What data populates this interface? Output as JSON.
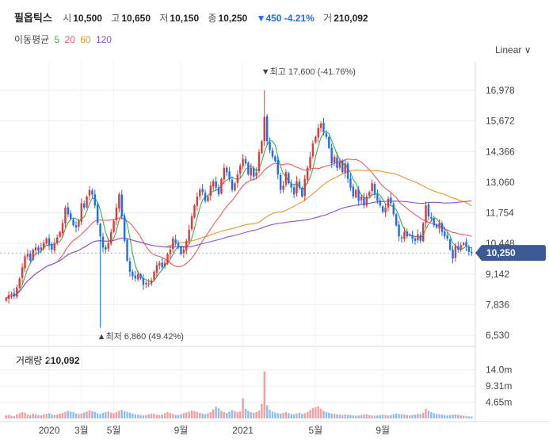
{
  "header": {
    "name": "필옵틱스",
    "open_label": "시",
    "open": "10,500",
    "high_label": "고",
    "high": "10,650",
    "low_label": "저",
    "low": "10,150",
    "close_label": "종",
    "close": "10,250",
    "change": "▼450 -4.21%",
    "volume_label": "거",
    "volume": "210,092"
  },
  "ma_legend": {
    "label": "이동평균",
    "items": [
      {
        "period": "5",
        "color": "#3fae49"
      },
      {
        "period": "20",
        "color": "#ef5a5a"
      },
      {
        "period": "60",
        "color": "#f0932b"
      },
      {
        "period": "120",
        "color": "#8b4fe0"
      }
    ]
  },
  "scale_selector": "Linear ∨",
  "colors": {
    "up": "#e03a3a",
    "down": "#1e6ef4",
    "vol_up": "#f0a0a0",
    "vol_down": "#8ec0ee",
    "badge": "#3d5a96"
  },
  "chart_data": {
    "type": "candlestick",
    "price_axis": {
      "ticks": [
        "16,978",
        "15,672",
        "14,366",
        "13,060",
        "11,754",
        "10,448",
        "9,142",
        "7,836",
        "6,530"
      ],
      "ylim": [
        6530,
        17600
      ]
    },
    "x_ticks": [
      "2020",
      "3월",
      "5월",
      "9월",
      "2021",
      "5월",
      "9월"
    ],
    "current_price": 10250,
    "current_price_label": "10,250",
    "max_annotation": "▼최고 17,600 (-41.76%)",
    "min_annotation": "▲최저 6,860 (49.42%)",
    "volume_title": "거래량",
    "volume_value": "210,092",
    "volume_axis": {
      "ticks": [
        "14.0m",
        "9.31m",
        "4.65m"
      ]
    },
    "series": {
      "close": [
        8200,
        8350,
        8400,
        8300,
        8700,
        9100,
        9600,
        10100,
        10200,
        9900,
        10400,
        10500,
        10350,
        10500,
        10700,
        10900,
        10600,
        10400,
        10700,
        10950,
        11200,
        11600,
        12300,
        12000,
        11800,
        11500,
        11400,
        11700,
        12500,
        12300,
        12800,
        13100,
        12900,
        12400,
        11600,
        11000,
        10500,
        10400,
        10700,
        11200,
        11700,
        12300,
        12900,
        11900,
        10800,
        9900,
        9400,
        9200,
        9100,
        9300,
        9100,
        8800,
        8900,
        8850,
        9000,
        9400,
        9700,
        9800,
        9600,
        9800,
        10200,
        10400,
        10900,
        10700,
        10500,
        10200,
        10400,
        10800,
        11300,
        11900,
        12400,
        12800,
        13100,
        13000,
        12600,
        12800,
        13300,
        13500,
        13200,
        12900,
        13600,
        14100,
        13900,
        13600,
        13100,
        13400,
        13800,
        14200,
        14500,
        14300,
        13800,
        14100,
        13700,
        13900,
        14800,
        15300,
        16400,
        15300,
        14900,
        14600,
        14400,
        13800,
        13100,
        13300,
        13900,
        13400,
        13200,
        12900,
        13500,
        13200,
        12800,
        13600,
        14100,
        14600,
        15200,
        15500,
        15900,
        16100,
        15700,
        15500,
        15000,
        14300,
        14600,
        14100,
        14400,
        13900,
        14300,
        13600,
        13200,
        12800,
        13100,
        12600,
        12800,
        12400,
        12800,
        13000,
        13400,
        12900,
        12600,
        12400,
        12100,
        12300,
        12700,
        12500,
        12000,
        11500,
        11000,
        10900,
        11200,
        11000,
        11100,
        10900,
        10800,
        11100,
        10800,
        11600,
        12400,
        11900,
        11800,
        11500,
        11400,
        11600,
        11200,
        11000,
        10900,
        10400,
        10000,
        10600,
        10400,
        10600,
        10700,
        10550,
        10300,
        10250
      ],
      "volume_m": [
        0.9,
        1.0,
        0.8,
        0.7,
        1.2,
        1.5,
        1.8,
        1.6,
        1.1,
        1.0,
        1.4,
        1.2,
        1.0,
        0.9,
        1.1,
        1.3,
        1.5,
        1.2,
        1.0,
        1.1,
        1.4,
        1.6,
        1.9,
        2.2,
        2.0,
        1.8,
        1.4,
        1.2,
        1.5,
        1.7,
        2.0,
        2.4,
        2.1,
        1.9,
        1.5,
        1.3,
        1.6,
        1.8,
        2.0,
        1.7,
        1.5,
        1.8,
        2.2,
        2.5,
        2.1,
        1.9,
        1.7,
        1.4,
        1.2,
        1.1,
        1.0,
        0.9,
        1.0,
        1.2,
        1.4,
        1.3,
        1.1,
        1.0,
        1.2,
        1.5,
        1.8,
        1.6,
        1.3,
        1.1,
        1.0,
        1.2,
        1.5,
        1.7,
        2.0,
        2.3,
        2.1,
        1.9,
        1.6,
        1.4,
        1.3,
        1.5,
        1.8,
        2.6,
        3.4,
        2.9,
        2.2,
        1.8,
        1.6,
        1.9,
        2.4,
        2.1,
        1.8,
        2.0,
        5.8,
        2.8,
        2.2,
        1.8,
        1.6,
        1.9,
        2.3,
        4.2,
        13.5,
        3.8,
        2.5,
        2.0,
        1.7,
        1.5,
        1.4,
        1.6,
        1.8,
        1.5,
        1.3,
        1.2,
        1.4,
        1.6,
        1.3,
        1.5,
        1.9,
        2.4,
        3.0,
        3.2,
        3.5,
        2.8,
        2.2,
        1.9,
        1.6,
        1.4,
        1.3,
        1.2,
        1.1,
        1.0,
        1.2,
        1.1,
        1.0,
        0.9,
        0.8,
        0.9,
        1.0,
        1.1,
        1.2,
        1.0,
        0.9,
        0.8,
        0.9,
        1.0,
        1.1,
        1.0,
        0.9,
        1.0,
        1.2,
        1.4,
        1.3,
        1.2,
        1.1,
        1.0,
        0.9,
        1.0,
        1.1,
        1.3,
        1.2,
        1.6,
        2.8,
        2.2,
        1.8,
        1.5,
        1.3,
        1.2,
        1.1,
        1.0,
        0.9,
        1.0,
        1.1,
        1.2,
        1.0,
        0.9,
        0.8,
        0.7,
        0.6,
        0.6
      ]
    }
  }
}
